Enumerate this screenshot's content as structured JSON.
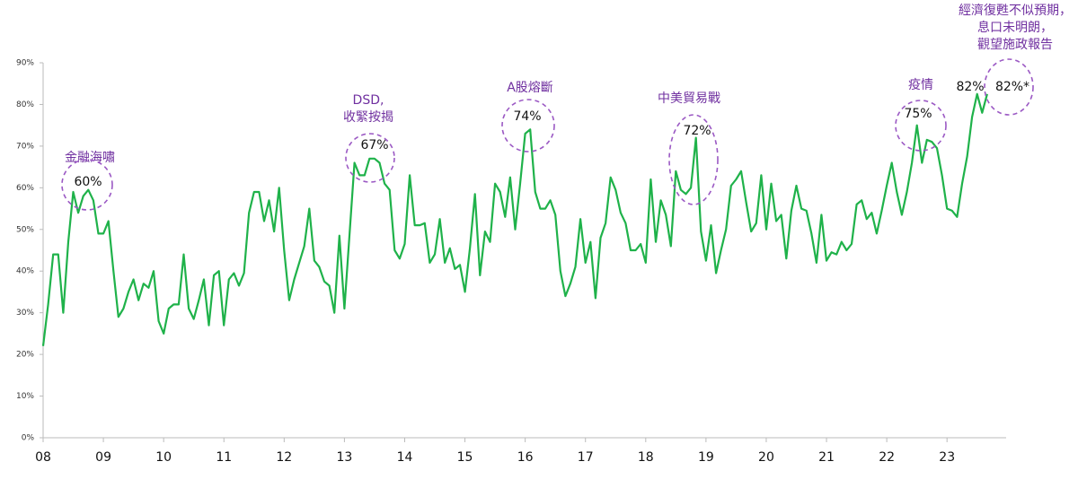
{
  "chart_data": {
    "type": "line",
    "categories": [
      "08",
      null,
      null,
      null,
      null,
      null,
      null,
      null,
      null,
      null,
      null,
      null,
      "09",
      null,
      null,
      null,
      null,
      null,
      null,
      null,
      null,
      null,
      null,
      null,
      "10",
      null,
      null,
      null,
      null,
      null,
      null,
      null,
      null,
      null,
      null,
      null,
      "11",
      null,
      null,
      null,
      null,
      null,
      null,
      null,
      null,
      null,
      null,
      null,
      "12",
      null,
      null,
      null,
      null,
      null,
      null,
      null,
      null,
      null,
      null,
      null,
      "13",
      null,
      null,
      null,
      null,
      null,
      null,
      null,
      null,
      null,
      null,
      null,
      "14",
      null,
      null,
      null,
      null,
      null,
      null,
      null,
      null,
      null,
      null,
      null,
      "15",
      null,
      null,
      null,
      null,
      null,
      null,
      null,
      null,
      null,
      null,
      null,
      "16",
      null,
      null,
      null,
      null,
      null,
      null,
      null,
      null,
      null,
      null,
      null,
      "17",
      null,
      null,
      null,
      null,
      null,
      null,
      null,
      null,
      null,
      null,
      null,
      "18",
      null,
      null,
      null,
      null,
      null,
      null,
      null,
      null,
      null,
      null,
      null,
      "19",
      null,
      null,
      null,
      null,
      null,
      null,
      null,
      null,
      null,
      null,
      null,
      "20",
      null,
      null,
      null,
      null,
      null,
      null,
      null,
      null,
      null,
      null,
      null,
      "21",
      null,
      null,
      null,
      null,
      null,
      null,
      null,
      null,
      null,
      null,
      null,
      "22",
      null,
      null,
      null,
      null,
      null,
      null,
      null,
      null,
      null,
      null,
      null,
      "23",
      null,
      null,
      null,
      null,
      null,
      null,
      null,
      null
    ],
    "series": [
      {
        "color": "#1fb24a",
        "values": [
          22,
          32,
          44,
          44,
          30,
          47,
          59,
          54,
          58,
          59.5,
          57,
          49,
          49,
          52,
          40,
          29,
          31,
          35,
          38,
          33,
          37,
          36,
          40,
          28,
          25,
          31,
          32,
          32,
          44,
          31,
          28.5,
          33,
          38,
          27,
          39,
          40,
          27,
          38,
          39.5,
          36.5,
          39.5,
          54,
          59,
          59,
          52,
          57,
          49.5,
          60,
          45,
          33,
          38,
          42,
          46,
          55,
          42.5,
          41,
          37.5,
          36.5,
          30,
          48.5,
          31,
          48.5,
          66,
          63,
          63,
          67,
          67,
          66,
          61,
          59.5,
          45,
          43,
          46.5,
          63,
          51,
          51,
          51.5,
          42,
          44,
          52.5,
          42,
          45.5,
          40.5,
          41.5,
          35,
          45.5,
          58.5,
          39,
          49.5,
          47,
          61,
          59,
          53,
          62.5,
          50,
          61,
          73,
          74,
          59,
          55,
          55,
          57,
          53.5,
          40,
          34,
          37,
          41,
          52.5,
          42,
          47,
          33.5,
          48,
          51.5,
          62.5,
          59.5,
          54,
          51.5,
          45,
          45,
          46.5,
          42,
          62,
          47,
          57,
          53.5,
          46,
          64,
          59.5,
          58.5,
          60,
          72,
          49.5,
          42.5,
          51,
          39.5,
          45,
          50,
          60.5,
          62,
          64,
          56.5,
          49.5,
          51.5,
          63,
          50,
          61,
          52,
          53.5,
          43,
          54.5,
          60.5,
          55,
          54.5,
          49,
          42,
          53.5,
          42.5,
          44.5,
          44,
          47,
          45,
          46.5,
          56,
          57,
          52.5,
          54,
          49,
          54.5,
          60.5,
          66,
          59,
          53.5,
          59,
          66,
          75,
          66,
          71.5,
          71,
          69.5,
          63,
          55,
          54.5,
          53,
          61,
          67.5,
          77,
          82.5,
          78,
          82.5
        ]
      }
    ],
    "ylim": [
      0,
      90
    ],
    "yticks": [
      {
        "value": 0,
        "label": "0%"
      },
      {
        "value": 10,
        "label": "10%"
      },
      {
        "value": 20,
        "label": "20%"
      },
      {
        "value": 30,
        "label": "30%"
      },
      {
        "value": 40,
        "label": "40%"
      },
      {
        "value": 50,
        "label": "50%"
      },
      {
        "value": 60,
        "label": "60%"
      },
      {
        "value": 70,
        "label": "70%"
      },
      {
        "value": 80,
        "label": "80%"
      },
      {
        "value": 90,
        "label": "90%"
      }
    ],
    "annotations": [
      {
        "text": "金融海嘯"
      },
      {
        "text": "60%"
      },
      {
        "lines": [
          "DSD,",
          "收緊按揭"
        ]
      },
      {
        "text": "67%"
      },
      {
        "text": "A股熔斷"
      },
      {
        "text": "74%"
      },
      {
        "text": "中美貿易戰"
      },
      {
        "text": "72%"
      },
      {
        "text": "疫情"
      },
      {
        "text": "75%"
      },
      {
        "text": "82%"
      },
      {
        "text": "82%*"
      },
      {
        "lines": [
          "經濟復甦不似預期，",
          "息口未明朗，",
          "觀望施政報告"
        ]
      }
    ]
  }
}
